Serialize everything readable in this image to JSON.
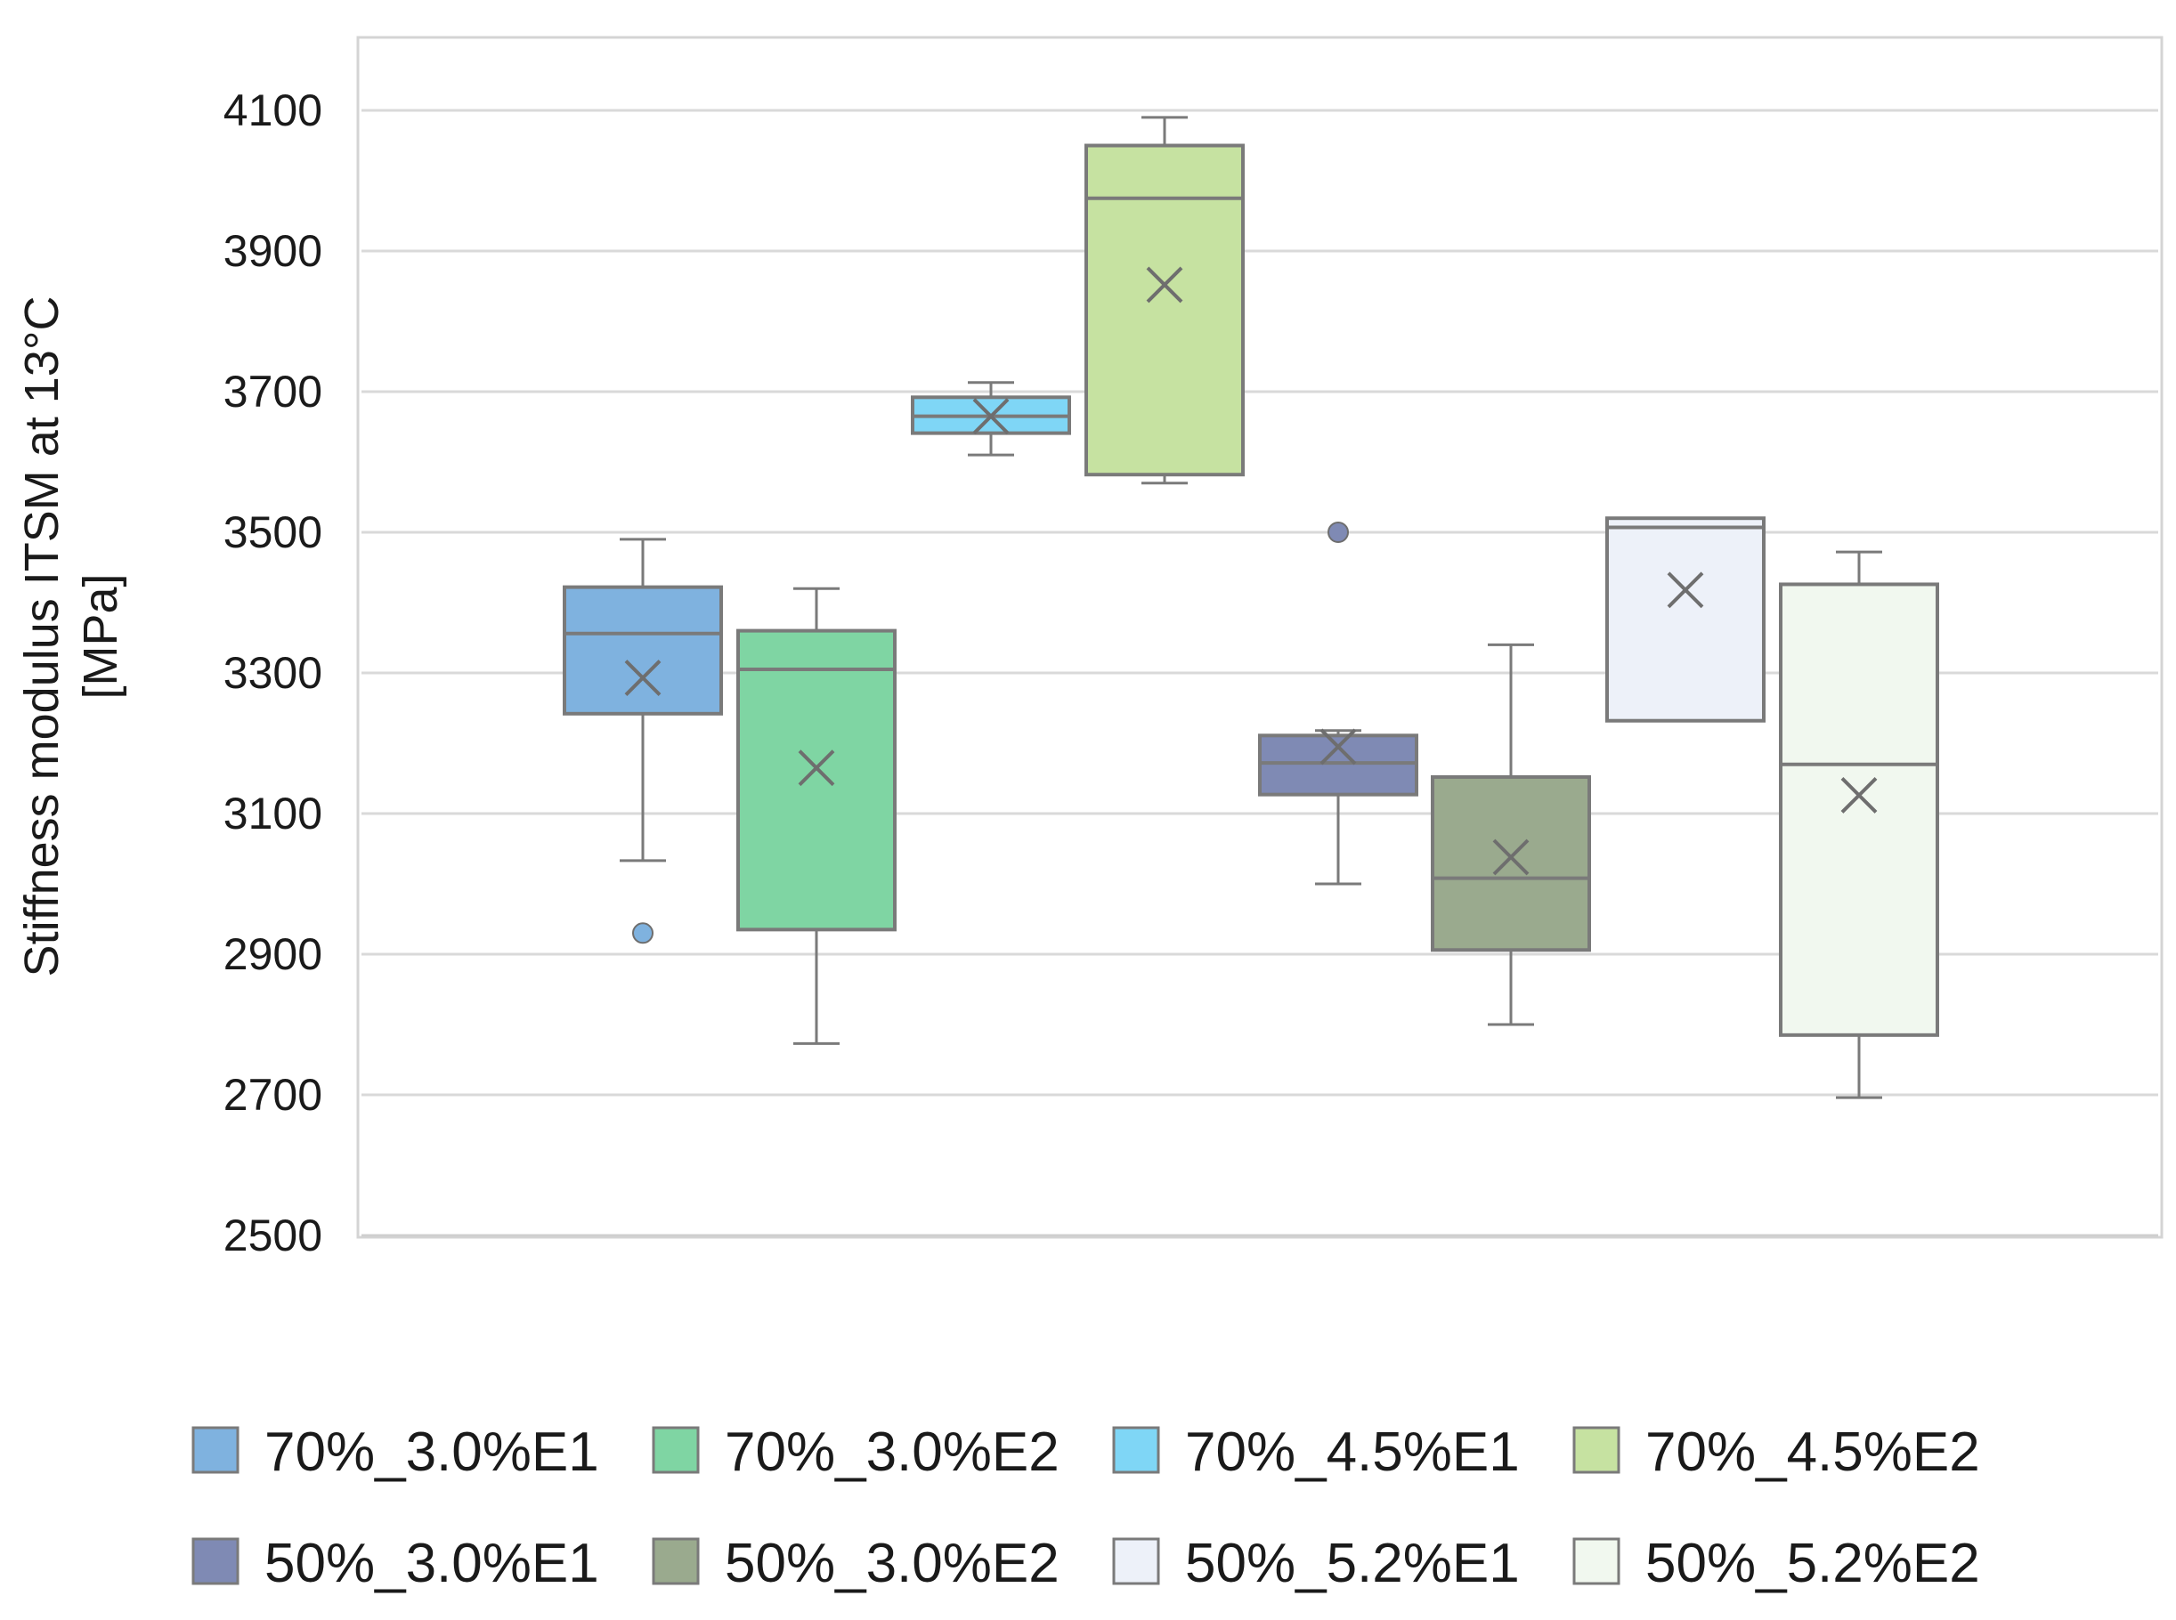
{
  "chart_data": {
    "type": "boxplot",
    "title": "",
    "xlabel": "",
    "ylabel_lines": [
      "Stiffness modulus ITSM at 13°C",
      "[MPa]"
    ],
    "ylim": [
      2500,
      4200
    ],
    "yticks": [
      2500,
      2700,
      2900,
      3100,
      3300,
      3500,
      3700,
      3900,
      4100
    ],
    "grid": true,
    "legend_position": "bottom",
    "series": [
      {
        "name": "70%_3.0%E1",
        "color": "#7fb2df",
        "min": 3033,
        "q1": 3242,
        "median": 3356,
        "q3": 3422,
        "max": 3490,
        "mean": 3293,
        "outliers": [
          2930
        ]
      },
      {
        "name": "70%_3.0%E2",
        "color": "#7fd5a3",
        "min": 2773,
        "q1": 2935,
        "median": 3305,
        "q3": 3360,
        "max": 3420,
        "mean": 3165,
        "outliers": []
      },
      {
        "name": "70%_4.5%E1",
        "color": "#7fd6f6",
        "min": 3610,
        "q1": 3641,
        "median": 3665,
        "q3": 3692,
        "max": 3713,
        "mean": 3665,
        "outliers": []
      },
      {
        "name": "70%_4.5%E2",
        "color": "#c6e2a1",
        "min": 3570,
        "q1": 3582,
        "median": 3975,
        "q3": 4050,
        "max": 4090,
        "mean": 3852,
        "outliers": []
      },
      {
        "name": "50%_3.0%E1",
        "color": "#7f8ab4",
        "min": 3000,
        "q1": 3127,
        "median": 3172,
        "q3": 3211,
        "max": 3218,
        "mean": 3195,
        "outliers": [
          3500
        ]
      },
      {
        "name": "50%_3.0%E2",
        "color": "#9aaa8e",
        "min": 2800,
        "q1": 2906,
        "median": 3008,
        "q3": 3152,
        "max": 3340,
        "mean": 3038,
        "outliers": []
      },
      {
        "name": "50%_5.2%E1",
        "color": "#edf1f9",
        "min": 3232,
        "q1": 3232,
        "median": 3507,
        "q3": 3520,
        "max": 3520,
        "mean": 3418,
        "outliers": []
      },
      {
        "name": "50%_5.2%E2",
        "color": "#f1f8ef",
        "min": 2696,
        "q1": 2785,
        "median": 3170,
        "q3": 3426,
        "max": 3472,
        "mean": 3126,
        "outliers": []
      }
    ]
  }
}
